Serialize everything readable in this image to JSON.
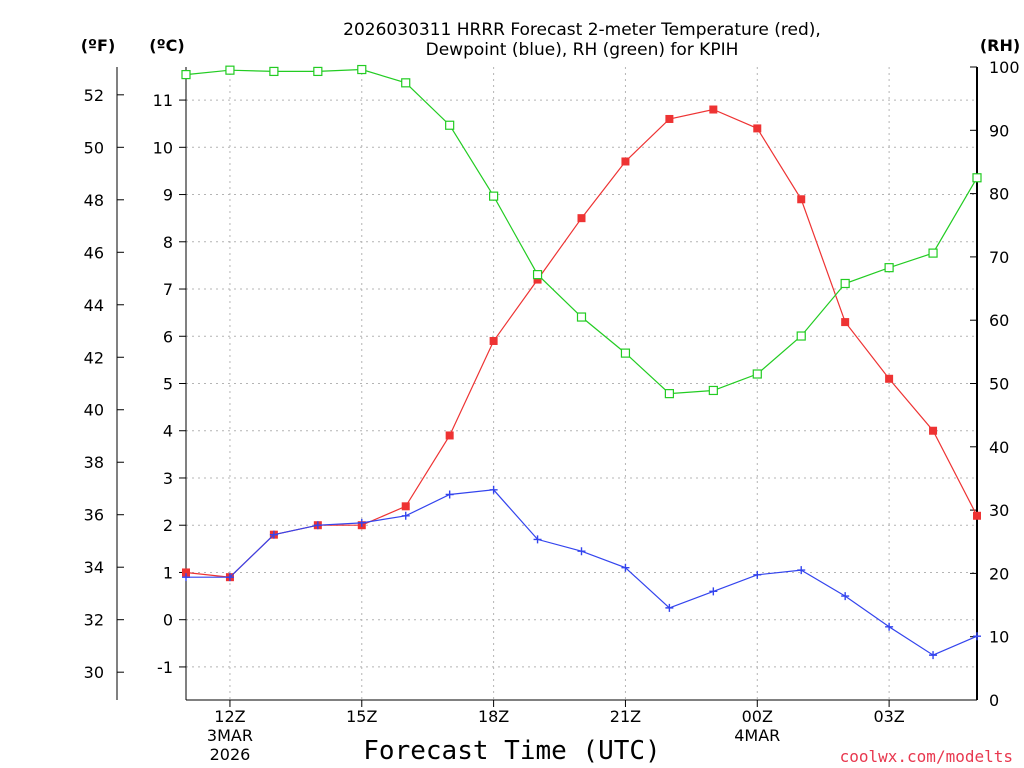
{
  "chart_data": {
    "type": "line",
    "title_line1": "2026030311 HRRR Forecast 2-meter Temperature (red),",
    "title_line2": "Dewpoint (blue), RH (green) for KPIH",
    "xlabel": "Forecast Time (UTC)",
    "credit": "coolwx.com/modelts",
    "units": {
      "left_f": "(ºF)",
      "left_c": "(ºC)",
      "right_rh": "(RH)"
    },
    "x_hours": [
      11,
      12,
      13,
      14,
      15,
      16,
      17,
      18,
      19,
      20,
      21,
      22,
      23,
      24,
      25,
      26,
      27,
      28,
      29
    ],
    "x_ticks": [
      {
        "hour": 12,
        "label": "12Z",
        "sub1": "3MAR",
        "sub2": "2026"
      },
      {
        "hour": 15,
        "label": "15Z",
        "sub1": "",
        "sub2": ""
      },
      {
        "hour": 18,
        "label": "18Z",
        "sub1": "",
        "sub2": ""
      },
      {
        "hour": 21,
        "label": "21Z",
        "sub1": "",
        "sub2": ""
      },
      {
        "hour": 24,
        "label": "00Z",
        "sub1": "4MAR",
        "sub2": ""
      },
      {
        "hour": 27,
        "label": "03Z",
        "sub1": "",
        "sub2": ""
      }
    ],
    "y_celsius": {
      "min": -1.7,
      "max": 11.7,
      "ticks": [
        "-1",
        "0",
        "1",
        "2",
        "3",
        "4",
        "5",
        "6",
        "7",
        "8",
        "9",
        "10",
        "11"
      ]
    },
    "y_fahrenheit_ticks": [
      "30",
      "32",
      "34",
      "36",
      "38",
      "40",
      "42",
      "44",
      "46",
      "48",
      "50",
      "52"
    ],
    "y_rh": {
      "min": 0,
      "max": 100,
      "ticks": [
        "0",
        "10",
        "20",
        "30",
        "40",
        "50",
        "60",
        "70",
        "80",
        "90",
        "100"
      ]
    },
    "series": [
      {
        "name": "Temperature",
        "color": "#ee3333",
        "marker": "filled-square",
        "axis": "celsius",
        "values": [
          1.0,
          0.9,
          1.8,
          2.0,
          2.0,
          2.4,
          3.9,
          5.9,
          7.2,
          8.5,
          9.7,
          10.6,
          10.8,
          10.4,
          8.9,
          6.3,
          5.1,
          4.0,
          2.2
        ]
      },
      {
        "name": "Dewpoint",
        "color": "#3344ee",
        "marker": "plus",
        "axis": "celsius",
        "values": [
          0.9,
          0.9,
          1.8,
          2.0,
          2.05,
          2.2,
          2.65,
          2.75,
          1.7,
          1.45,
          1.1,
          0.25,
          0.6,
          0.95,
          1.05,
          0.5,
          -0.15,
          -0.75,
          -0.35
        ]
      },
      {
        "name": "RH",
        "color": "#22cc22",
        "marker": "open-square",
        "axis": "rh",
        "values": [
          98.8,
          99.5,
          99.3,
          99.3,
          99.6,
          97.5,
          90.8,
          79.6,
          67.2,
          60.5,
          54.8,
          48.4,
          48.9,
          51.5,
          57.5,
          65.8,
          68.3,
          70.6,
          82.5
        ]
      }
    ]
  }
}
